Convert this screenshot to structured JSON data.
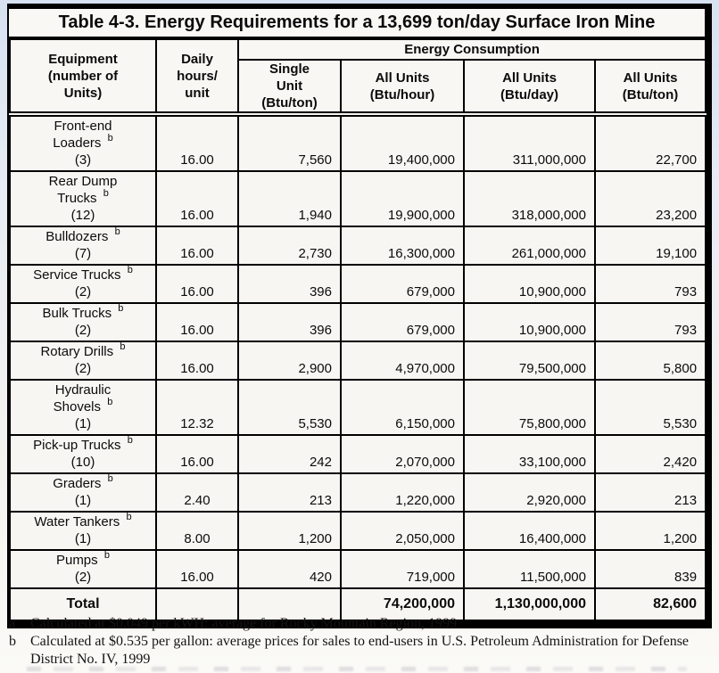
{
  "page": {
    "title": "Table 4-3. Energy Requirements for a 13,699 ton/day Surface Iron Mine"
  },
  "table": {
    "columns": {
      "equipment": "Equipment\n(number of\nUnits)",
      "daily_hours": "Daily\nhours/\nunit",
      "energy_group": "Energy Consumption",
      "single_unit_btu_ton": "Single\nUnit\n(Btu/ton)",
      "all_units_btu_hour": "All Units\n(Btu/hour)",
      "all_units_btu_day": "All Units\n(Btu/day)",
      "all_units_btu_ton": "All Units\n(Btu/ton)"
    },
    "rows": [
      {
        "name_lines": [
          "Front-end",
          "Loaders"
        ],
        "footnote_ref": "b",
        "units": "(3)",
        "daily_hours": "16.00",
        "single_unit_btu_ton": "7,560",
        "all_units_btu_hour": "19,400,000",
        "all_units_btu_day": "311,000,000",
        "all_units_btu_ton": "22,700"
      },
      {
        "name_lines": [
          "Rear Dump",
          "Trucks"
        ],
        "footnote_ref": "b",
        "units": "(12)",
        "daily_hours": "16.00",
        "single_unit_btu_ton": "1,940",
        "all_units_btu_hour": "19,900,000",
        "all_units_btu_day": "318,000,000",
        "all_units_btu_ton": "23,200"
      },
      {
        "name_lines": [
          "Bulldozers"
        ],
        "footnote_ref": "b",
        "units": "(7)",
        "daily_hours": "16.00",
        "single_unit_btu_ton": "2,730",
        "all_units_btu_hour": "16,300,000",
        "all_units_btu_day": "261,000,000",
        "all_units_btu_ton": "19,100"
      },
      {
        "name_lines": [
          "Service Trucks"
        ],
        "footnote_ref": "b",
        "units": "(2)",
        "daily_hours": "16.00",
        "single_unit_btu_ton": "396",
        "all_units_btu_hour": "679,000",
        "all_units_btu_day": "10,900,000",
        "all_units_btu_ton": "793"
      },
      {
        "name_lines": [
          "Bulk Trucks"
        ],
        "footnote_ref": "b",
        "units": "(2)",
        "daily_hours": "16.00",
        "single_unit_btu_ton": "396",
        "all_units_btu_hour": "679,000",
        "all_units_btu_day": "10,900,000",
        "all_units_btu_ton": "793"
      },
      {
        "name_lines": [
          "Rotary Drills"
        ],
        "footnote_ref": "b",
        "units": "(2)",
        "daily_hours": "16.00",
        "single_unit_btu_ton": "2,900",
        "all_units_btu_hour": "4,970,000",
        "all_units_btu_day": "79,500,000",
        "all_units_btu_ton": "5,800"
      },
      {
        "name_lines": [
          "Hydraulic",
          "Shovels"
        ],
        "footnote_ref": "b",
        "units": "(1)",
        "daily_hours": "12.32",
        "single_unit_btu_ton": "5,530",
        "all_units_btu_hour": "6,150,000",
        "all_units_btu_day": "75,800,000",
        "all_units_btu_ton": "5,530"
      },
      {
        "name_lines": [
          "Pick-up Trucks"
        ],
        "footnote_ref": "b",
        "units": "(10)",
        "daily_hours": "16.00",
        "single_unit_btu_ton": "242",
        "all_units_btu_hour": "2,070,000",
        "all_units_btu_day": "33,100,000",
        "all_units_btu_ton": "2,420"
      },
      {
        "name_lines": [
          "Graders"
        ],
        "footnote_ref": "b",
        "units": "(1)",
        "daily_hours": "2.40",
        "single_unit_btu_ton": "213",
        "all_units_btu_hour": "1,220,000",
        "all_units_btu_day": "2,920,000",
        "all_units_btu_ton": "213"
      },
      {
        "name_lines": [
          "Water Tankers"
        ],
        "footnote_ref": "b",
        "units": "(1)",
        "daily_hours": "8.00",
        "single_unit_btu_ton": "1,200",
        "all_units_btu_hour": "2,050,000",
        "all_units_btu_day": "16,400,000",
        "all_units_btu_ton": "1,200"
      },
      {
        "name_lines": [
          "Pumps"
        ],
        "footnote_ref": "b",
        "units": "(2)",
        "daily_hours": "16.00",
        "single_unit_btu_ton": "420",
        "all_units_btu_hour": "719,000",
        "all_units_btu_day": "11,500,000",
        "all_units_btu_ton": "839"
      }
    ],
    "total_row": {
      "label": "Total",
      "daily_hours": "",
      "single_unit_btu_ton": "",
      "all_units_btu_hour": "74,200,000",
      "all_units_btu_day": "1,130,000,000",
      "all_units_btu_ton": "82,600"
    }
  },
  "footnotes": [
    {
      "marker": "a",
      "text": "Calculated at $0.049 per kWH: average for Rocky Mountain Region, 1999"
    },
    {
      "marker": "b",
      "text": "Calculated at $0.535 per gallon: average prices for sales to end-users in U.S. Petroleum Administration for Defense District No. IV, 1999"
    }
  ]
}
